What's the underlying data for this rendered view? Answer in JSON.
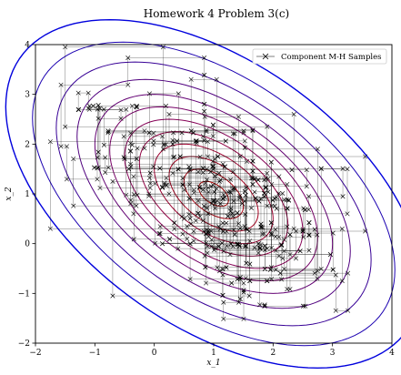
{
  "chart_data": {
    "type": "scatter",
    "title": "Homework 4 Problem 3(c)",
    "xlabel": "x_1",
    "ylabel": "x_2",
    "xlim": [
      -2,
      4
    ],
    "ylim": [
      -2,
      4
    ],
    "xticks": [
      "−2",
      "−1",
      "0",
      "1",
      "2",
      "3",
      "4"
    ],
    "yticks": [
      "−2",
      "−1",
      "0",
      "1",
      "2",
      "3",
      "4"
    ],
    "legend": {
      "placement": "top-right",
      "entries": [
        "Component M-H Samples"
      ]
    },
    "contours": {
      "center": [
        1.0,
        1.0
      ],
      "covariance": [
        [
          1.0,
          -0.5
        ],
        [
          -0.5,
          1.0
        ]
      ],
      "colormap": [
        "#0000cc",
        "#4b0082",
        "#800060",
        "#a0002a",
        "#b00000"
      ],
      "levels_mahalanobis": [
        0.25,
        0.5,
        0.75,
        1.0,
        1.25,
        1.5,
        1.75,
        2.0,
        2.3,
        2.65,
        3.05,
        3.5
      ]
    },
    "series": [
      {
        "name": "Component M-H Samples",
        "style": "line-with-x-markers",
        "color": "#000000",
        "count": 620,
        "x": [
          1.05,
          1.05,
          0.62,
          0.62,
          1.42,
          1.42,
          0.85,
          0.85,
          2.1,
          2.1,
          -0.35,
          -0.35,
          3.25,
          3.25,
          0.4,
          0.4,
          1.9,
          1.9,
          -1.5,
          -1.5,
          0.15,
          0.15,
          2.75,
          2.75,
          1.1,
          1.1,
          -0.7,
          -0.7,
          1.6,
          1.6,
          3.55,
          3.55,
          0.9,
          0.9,
          -1.75,
          -1.75,
          2.35,
          2.35,
          0.25,
          0.25
        ],
        "y": [
          1.1,
          3.3,
          3.3,
          0.4,
          0.4,
          2.55,
          2.55,
          -0.25,
          -0.25,
          1.35,
          1.35,
          0.6,
          0.6,
          1.5,
          1.5,
          -0.1,
          -0.1,
          2.35,
          2.35,
          3.95,
          3.95,
          1.9,
          1.9,
          -0.55,
          -0.55,
          1.25,
          1.25,
          -1.05,
          -1.05,
          0.25,
          0.25,
          1.75,
          1.75,
          2.05,
          2.05,
          0.3,
          0.3,
          2.6,
          2.6,
          1.0
        ]
      }
    ]
  }
}
